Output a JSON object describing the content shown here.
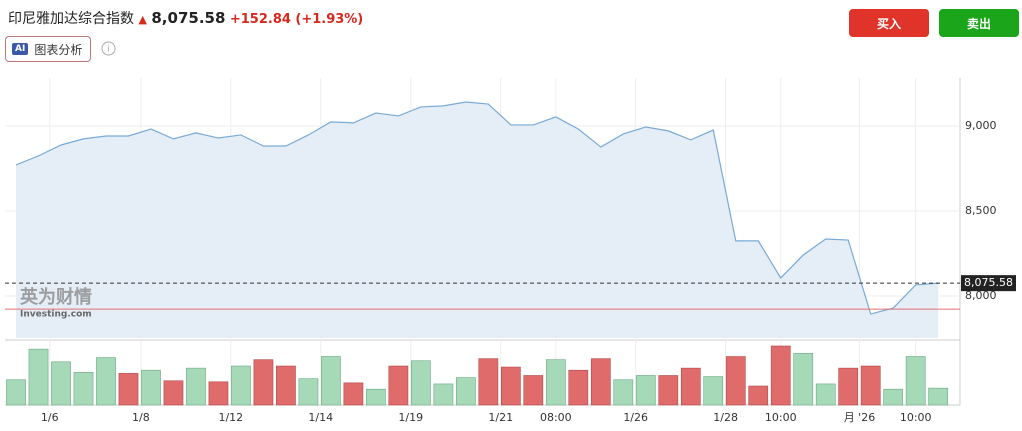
{
  "header": {
    "title": "印尼雅加达综合指数",
    "price": "8,075.58",
    "change": "+152.84",
    "change_pct": "(+1.93%)",
    "buy": "买入",
    "sell": "卖出",
    "ai_tag": "AI",
    "ai_label": "图表分析"
  },
  "chart_data": {
    "type": "area",
    "watermark": "英为财情",
    "watermark_sub": "Investing.com",
    "line_color": "#79aad6",
    "fill_color": "#e5eef7",
    "x": [
      0,
      1,
      2,
      3,
      4,
      5,
      6,
      7,
      8,
      9,
      10,
      11,
      12,
      13,
      14,
      15,
      16,
      17,
      18,
      19,
      20,
      21,
      22,
      23,
      24,
      25,
      26,
      27,
      28,
      29,
      30,
      31,
      32,
      33,
      34,
      35,
      36,
      37,
      38,
      39,
      40,
      41
    ],
    "values": [
      8771,
      8824,
      8888,
      8924,
      8941,
      8941,
      8982,
      8924,
      8959,
      8929,
      8947,
      8882,
      8882,
      8947,
      9024,
      9018,
      9076,
      9059,
      9112,
      9118,
      9141,
      9129,
      9006,
      9006,
      9053,
      8982,
      8876,
      8953,
      8994,
      8971,
      8918,
      8976,
      8324,
      8324,
      8106,
      8241,
      8335,
      8329,
      7894,
      7929,
      8065,
      8075.58
    ],
    "last_label": "8,075.58",
    "prev_close": 7922.74,
    "xlim": [
      -0.49,
      41.97
    ],
    "ylim": [
      7753,
      9282
    ],
    "yticks": [
      {
        "value": 8000,
        "label": "8,000"
      },
      {
        "value": 8500,
        "label": "8,500"
      },
      {
        "value": 9000,
        "label": "9,000"
      }
    ],
    "xticks": [
      {
        "value": 1.5,
        "label": "1/6"
      },
      {
        "value": 5.55,
        "label": "1/8"
      },
      {
        "value": 9.55,
        "label": "1/12"
      },
      {
        "value": 13.55,
        "label": "1/14"
      },
      {
        "value": 17.55,
        "label": "1/19"
      },
      {
        "value": 21.55,
        "label": "1/21"
      },
      {
        "value": 24,
        "label": "08:00"
      },
      {
        "value": 27.55,
        "label": "1/26"
      },
      {
        "value": 31.55,
        "label": "1/28"
      },
      {
        "value": 34,
        "label": "10:00"
      },
      {
        "value": 37.5,
        "label": "月 '26"
      },
      {
        "value": 40,
        "label": "10:00"
      }
    ],
    "volume": [
      24,
      53,
      41,
      31,
      45,
      30,
      33,
      23,
      35,
      22,
      37,
      43,
      37,
      25,
      46,
      21,
      15,
      37,
      42,
      20,
      26,
      44,
      36,
      28,
      43,
      33,
      44,
      24,
      28,
      28,
      35,
      27,
      46,
      18,
      56,
      49,
      20,
      35,
      37,
      15,
      46,
      16
    ],
    "volume_direction": [
      "up",
      "up",
      "up",
      "up",
      "up",
      "down",
      "up",
      "down",
      "up",
      "down",
      "up",
      "down",
      "down",
      "up",
      "up",
      "down",
      "up",
      "down",
      "up",
      "up",
      "up",
      "down",
      "down",
      "down",
      "up",
      "down",
      "down",
      "up",
      "up",
      "down",
      "down",
      "up",
      "down",
      "down",
      "down",
      "up",
      "up",
      "down",
      "down",
      "up",
      "up",
      "up"
    ],
    "up_color": "#a6d9b8",
    "down_color": "#e06b6b",
    "grid": true
  }
}
